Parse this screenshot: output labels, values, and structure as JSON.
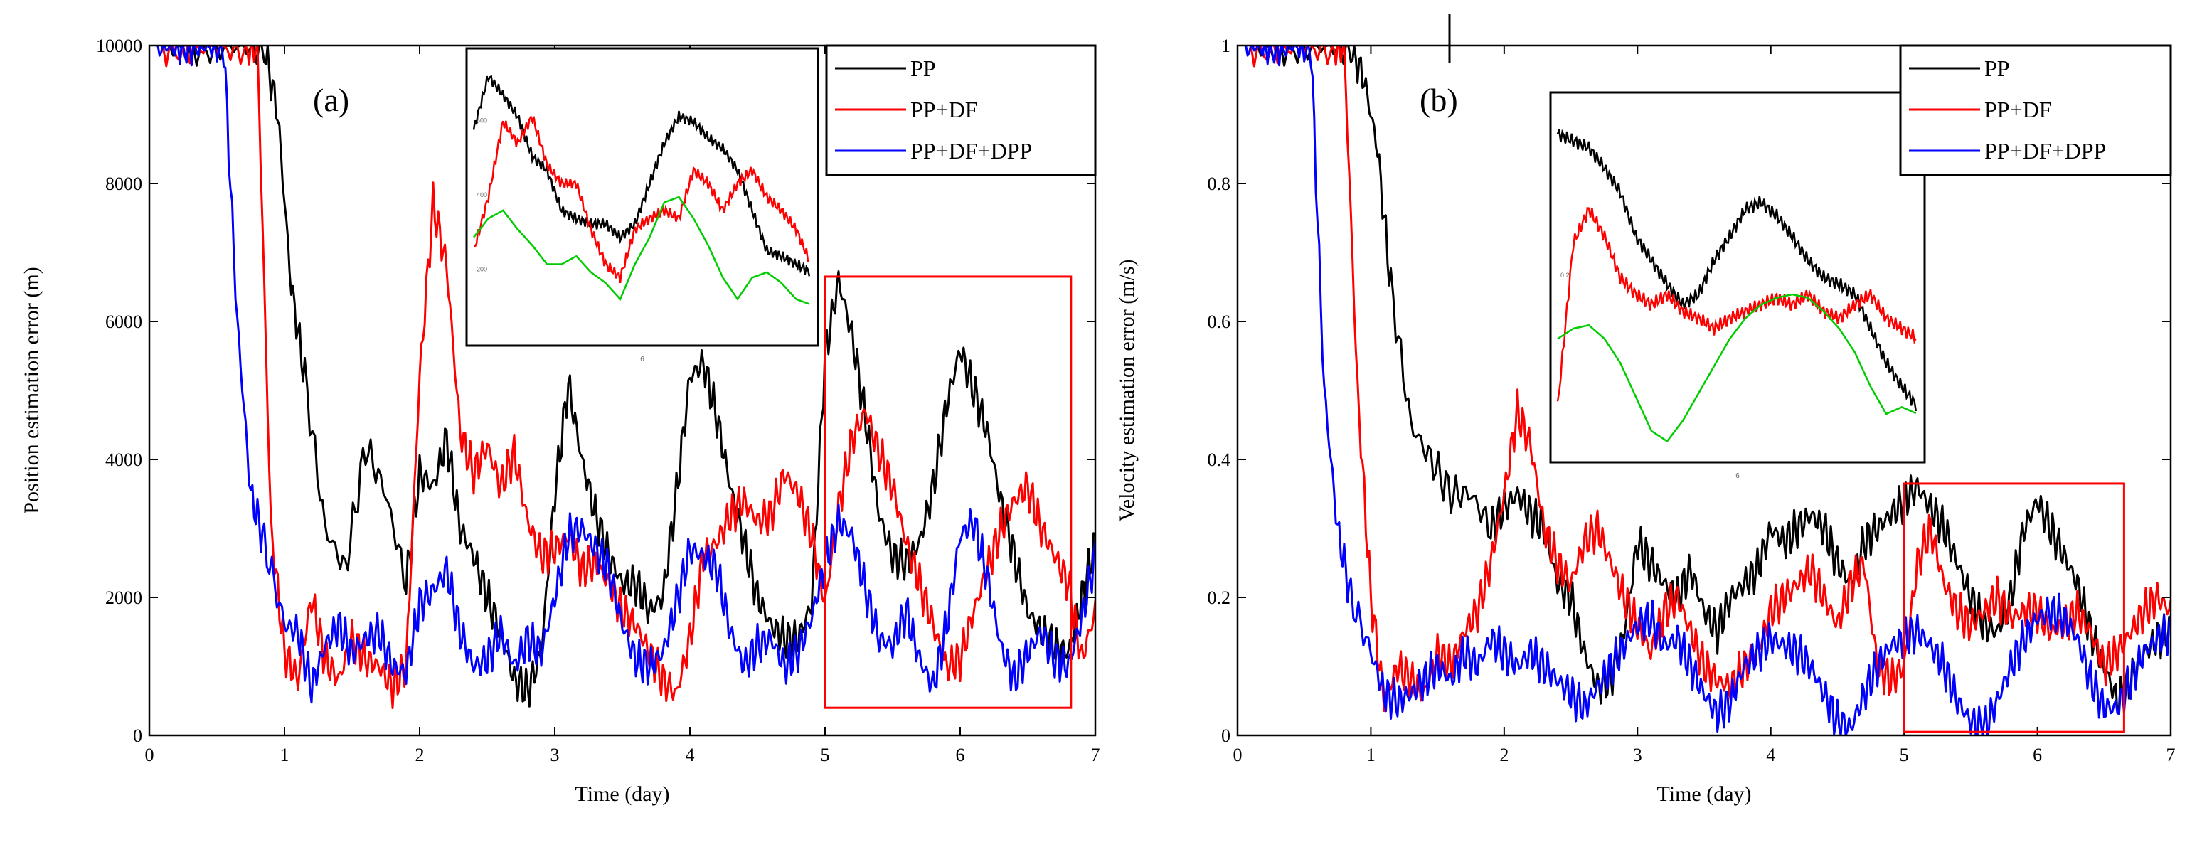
{
  "chart_data": [
    {
      "type": "line",
      "panel_label": "(a)",
      "xlabel": "Time (day)",
      "ylabel": "Position estimation error (m)",
      "xlim": [
        0,
        7
      ],
      "ylim": [
        0,
        10000
      ],
      "x_ticks": [
        0,
        1,
        2,
        3,
        4,
        5,
        6,
        7
      ],
      "y_ticks": [
        0,
        2000,
        4000,
        6000,
        8000,
        10000
      ],
      "legend_position": "top-right",
      "series": [
        {
          "name": "PP",
          "color": "#000000",
          "x": [
            0.1,
            0.3,
            0.5,
            0.7,
            0.85,
            0.95,
            1.05,
            1.15,
            1.3,
            1.45,
            1.6,
            1.75,
            1.9,
            2.0,
            2.1,
            2.2,
            2.3,
            2.4,
            2.5,
            2.6,
            2.7,
            2.8,
            2.9,
            3.0,
            3.1,
            3.2,
            3.3,
            3.4,
            3.5,
            3.6,
            3.7,
            3.8,
            3.9,
            4.0,
            4.1,
            4.2,
            4.3,
            4.4,
            4.5,
            4.6,
            4.7,
            4.8,
            4.9,
            5.0,
            5.1,
            5.2,
            5.3,
            5.4,
            5.5,
            5.6,
            5.7,
            5.8,
            5.9,
            6.0,
            6.1,
            6.2,
            6.3,
            6.4,
            6.5,
            6.6,
            6.7,
            6.8,
            6.9,
            7.0
          ],
          "y": [
            10000,
            10000,
            10000,
            10000,
            10000,
            9000,
            6500,
            5200,
            3000,
            2400,
            4200,
            3500,
            2200,
            3800,
            3600,
            4300,
            3000,
            2600,
            2000,
            1500,
            800,
            650,
            1200,
            3500,
            5100,
            4000,
            3200,
            2600,
            2200,
            2200,
            1800,
            2000,
            3500,
            5200,
            5400,
            4600,
            3600,
            2800,
            2000,
            1600,
            1400,
            1400,
            1900,
            5500,
            6600,
            5800,
            4600,
            3200,
            2600,
            2500,
            2800,
            3600,
            4800,
            5600,
            5000,
            4400,
            3400,
            2600,
            1800,
            1500,
            1300,
            1200,
            2000,
            2800
          ]
        },
        {
          "name": "PP+DF",
          "color": "#ff0000",
          "x": [
            0.1,
            0.3,
            0.5,
            0.7,
            0.8,
            0.9,
            1.0,
            1.1,
            1.2,
            1.3,
            1.4,
            1.5,
            1.6,
            1.7,
            1.8,
            1.9,
            2.0,
            2.1,
            2.2,
            2.3,
            2.4,
            2.5,
            2.6,
            2.7,
            2.8,
            2.9,
            3.0,
            3.1,
            3.2,
            3.3,
            3.4,
            3.5,
            3.6,
            3.7,
            3.8,
            3.9,
            4.0,
            4.1,
            4.2,
            4.3,
            4.4,
            4.5,
            4.6,
            4.7,
            4.8,
            4.9,
            5.0,
            5.1,
            5.2,
            5.3,
            5.4,
            5.5,
            5.6,
            5.7,
            5.8,
            5.9,
            6.0,
            6.1,
            6.2,
            6.3,
            6.4,
            6.5,
            6.6,
            6.7,
            6.8,
            6.9,
            7.0
          ],
          "y": [
            10000,
            10000,
            10000,
            10000,
            10000,
            3000,
            1200,
            800,
            2000,
            1100,
            800,
            1400,
            1100,
            1000,
            700,
            1000,
            5200,
            7700,
            6800,
            4400,
            3800,
            4200,
            3600,
            4100,
            3100,
            2600,
            2700,
            2900,
            2400,
            2500,
            2200,
            1800,
            1600,
            1200,
            800,
            600,
            1400,
            2600,
            2800,
            3200,
            3400,
            3100,
            3200,
            3800,
            3500,
            2900,
            1900,
            3300,
            4300,
            4700,
            4100,
            3600,
            2800,
            2200,
            1600,
            1000,
            1100,
            1800,
            2400,
            3000,
            3400,
            3600,
            3000,
            2600,
            2200,
            1100,
            1800
          ]
        },
        {
          "name": "PP+DF+DPP",
          "color": "#0000ff",
          "x": [
            0.05,
            0.15,
            0.25,
            0.35,
            0.45,
            0.55,
            0.65,
            0.75,
            0.85,
            1.0,
            1.1,
            1.2,
            1.3,
            1.4,
            1.5,
            1.6,
            1.7,
            1.8,
            1.9,
            2.0,
            2.1,
            2.2,
            2.3,
            2.4,
            2.5,
            2.6,
            2.7,
            2.8,
            2.9,
            3.0,
            3.1,
            3.2,
            3.3,
            3.4,
            3.5,
            3.6,
            3.7,
            3.8,
            3.9,
            4.0,
            4.1,
            4.2,
            4.3,
            4.4,
            4.5,
            4.6,
            4.7,
            4.8,
            4.9,
            5.0,
            5.1,
            5.2,
            5.3,
            5.4,
            5.5,
            5.6,
            5.7,
            5.8,
            5.9,
            6.0,
            6.1,
            6.2,
            6.3,
            6.4,
            6.5,
            6.6,
            6.7,
            6.8,
            6.9,
            7.0
          ],
          "y": [
            10000,
            10000,
            10000,
            10000,
            10000,
            10000,
            6000,
            3500,
            2800,
            1600,
            1500,
            700,
            1300,
            1600,
            1200,
            1400,
            1500,
            1000,
            900,
            1900,
            2100,
            2400,
            1500,
            1000,
            1100,
            1500,
            1000,
            1400,
            1200,
            2000,
            2900,
            3000,
            2700,
            2400,
            1600,
            1100,
            1000,
            1200,
            1900,
            2700,
            2600,
            2400,
            1500,
            1000,
            1300,
            1400,
            1000,
            1200,
            1700,
            2500,
            3100,
            2900,
            2100,
            1400,
            1300,
            1800,
            1100,
            700,
            1600,
            2900,
            3100,
            2300,
            1300,
            800,
            1200,
            1500,
            1100,
            1000,
            1700,
            2600
          ]
        }
      ],
      "inset": {
        "x_tick_label": "6",
        "y_tick_labels": [
          "600",
          "400",
          "200"
        ],
        "series": [
          {
            "name": "PP",
            "color": "#000000",
            "values": [
              0.75,
              0.95,
              0.88,
              0.8,
              0.65,
              0.6,
              0.45,
              0.42,
              0.4,
              0.4,
              0.35,
              0.4,
              0.55,
              0.7,
              0.8,
              0.78,
              0.72,
              0.68,
              0.6,
              0.45,
              0.3,
              0.28,
              0.25,
              0.22
            ]
          },
          {
            "name": "PP+DF",
            "color": "#ff0000",
            "values": [
              0.3,
              0.5,
              0.78,
              0.7,
              0.8,
              0.62,
              0.55,
              0.55,
              0.38,
              0.25,
              0.2,
              0.38,
              0.42,
              0.45,
              0.42,
              0.6,
              0.55,
              0.45,
              0.55,
              0.6,
              0.5,
              0.45,
              0.38,
              0.25
            ]
          },
          {
            "name": "PP+DF+DPP",
            "color": "#00cc00",
            "values": [
              0.35,
              0.42,
              0.45,
              0.38,
              0.32,
              0.25,
              0.25,
              0.28,
              0.22,
              0.18,
              0.12,
              0.25,
              0.35,
              0.48,
              0.5,
              0.42,
              0.32,
              0.2,
              0.12,
              0.2,
              0.22,
              0.18,
              0.12,
              0.1
            ]
          }
        ]
      }
    },
    {
      "type": "line",
      "panel_label": "(b)",
      "xlabel": "Time (day)",
      "ylabel": "Velocity estimation error (m/s)",
      "xlim": [
        0,
        7
      ],
      "ylim": [
        0,
        1.0
      ],
      "x_ticks": [
        0,
        1,
        2,
        3,
        4,
        5,
        6,
        7
      ],
      "y_ticks": [
        0.0,
        0.2,
        0.4,
        0.6,
        0.8,
        1.0
      ],
      "legend_position": "top-right",
      "series": [
        {
          "name": "PP",
          "color": "#000000",
          "x": [
            0.1,
            0.3,
            0.5,
            0.7,
            0.85,
            0.95,
            1.05,
            1.15,
            1.3,
            1.45,
            1.6,
            1.75,
            1.9,
            2.0,
            2.1,
            2.2,
            2.3,
            2.4,
            2.5,
            2.6,
            2.7,
            2.8,
            2.9,
            3.0,
            3.1,
            3.2,
            3.3,
            3.4,
            3.5,
            3.6,
            3.7,
            3.8,
            3.9,
            4.0,
            4.1,
            4.2,
            4.3,
            4.4,
            4.5,
            4.6,
            4.7,
            4.8,
            4.9,
            5.0,
            5.1,
            5.2,
            5.3,
            5.4,
            5.5,
            5.6,
            5.7,
            5.8,
            5.9,
            6.0,
            6.1,
            6.2,
            6.3,
            6.4,
            6.5,
            6.6,
            6.7,
            6.8,
            6.9,
            7.0
          ],
          "y": [
            1.0,
            1.0,
            1.0,
            1.0,
            1.0,
            0.95,
            0.85,
            0.65,
            0.45,
            0.4,
            0.35,
            0.35,
            0.3,
            0.33,
            0.35,
            0.32,
            0.3,
            0.22,
            0.2,
            0.12,
            0.07,
            0.08,
            0.15,
            0.28,
            0.25,
            0.22,
            0.2,
            0.24,
            0.18,
            0.15,
            0.2,
            0.22,
            0.24,
            0.3,
            0.28,
            0.3,
            0.32,
            0.3,
            0.25,
            0.22,
            0.28,
            0.3,
            0.32,
            0.34,
            0.36,
            0.33,
            0.3,
            0.25,
            0.2,
            0.16,
            0.15,
            0.2,
            0.3,
            0.34,
            0.3,
            0.26,
            0.22,
            0.15,
            0.1,
            0.05,
            0.08,
            0.12,
            0.14,
            0.15
          ]
        },
        {
          "name": "PP+DF",
          "color": "#ff0000",
          "x": [
            0.1,
            0.3,
            0.5,
            0.7,
            0.8,
            0.9,
            1.0,
            1.1,
            1.2,
            1.3,
            1.4,
            1.5,
            1.6,
            1.7,
            1.8,
            1.9,
            2.0,
            2.1,
            2.2,
            2.3,
            2.4,
            2.5,
            2.6,
            2.7,
            2.8,
            2.9,
            3.0,
            3.1,
            3.2,
            3.3,
            3.4,
            3.5,
            3.6,
            3.7,
            3.8,
            3.9,
            4.0,
            4.1,
            4.2,
            4.3,
            4.4,
            4.5,
            4.6,
            4.7,
            4.8,
            4.9,
            5.0,
            5.1,
            5.2,
            5.3,
            5.4,
            5.5,
            5.6,
            5.7,
            5.8,
            5.9,
            6.0,
            6.1,
            6.2,
            6.3,
            6.4,
            6.5,
            6.6,
            6.7,
            6.8,
            6.9,
            7.0
          ],
          "y": [
            1.0,
            1.0,
            1.0,
            1.0,
            1.0,
            0.5,
            0.2,
            0.05,
            0.1,
            0.08,
            0.06,
            0.12,
            0.1,
            0.15,
            0.18,
            0.25,
            0.35,
            0.47,
            0.42,
            0.3,
            0.25,
            0.22,
            0.28,
            0.3,
            0.25,
            0.2,
            0.16,
            0.12,
            0.18,
            0.2,
            0.15,
            0.1,
            0.08,
            0.07,
            0.1,
            0.12,
            0.18,
            0.2,
            0.22,
            0.24,
            0.2,
            0.16,
            0.22,
            0.25,
            0.1,
            0.08,
            0.1,
            0.25,
            0.3,
            0.22,
            0.18,
            0.16,
            0.18,
            0.2,
            0.17,
            0.18,
            0.18,
            0.15,
            0.16,
            0.18,
            0.15,
            0.1,
            0.12,
            0.15,
            0.18,
            0.2,
            0.18
          ]
        },
        {
          "name": "PP+DF+DPP",
          "color": "#0000ff",
          "x": [
            0.05,
            0.15,
            0.25,
            0.35,
            0.45,
            0.55,
            0.65,
            0.75,
            0.85,
            1.0,
            1.1,
            1.2,
            1.3,
            1.4,
            1.5,
            1.6,
            1.7,
            1.8,
            1.9,
            2.0,
            2.1,
            2.2,
            2.3,
            2.4,
            2.5,
            2.6,
            2.7,
            2.8,
            2.9,
            3.0,
            3.1,
            3.2,
            3.3,
            3.4,
            3.5,
            3.6,
            3.7,
            3.8,
            3.9,
            4.0,
            4.1,
            4.2,
            4.3,
            4.4,
            4.5,
            4.6,
            4.7,
            4.8,
            4.9,
            5.0,
            5.1,
            5.2,
            5.3,
            5.4,
            5.5,
            5.6,
            5.7,
            5.8,
            5.9,
            6.0,
            6.1,
            6.2,
            6.3,
            6.4,
            6.5,
            6.6,
            6.7,
            6.8,
            6.9,
            7.0
          ],
          "y": [
            1.0,
            1.0,
            1.0,
            1.0,
            1.0,
            1.0,
            0.5,
            0.3,
            0.2,
            0.12,
            0.06,
            0.05,
            0.06,
            0.08,
            0.1,
            0.08,
            0.12,
            0.1,
            0.14,
            0.12,
            0.1,
            0.12,
            0.1,
            0.08,
            0.06,
            0.04,
            0.07,
            0.1,
            0.13,
            0.16,
            0.17,
            0.13,
            0.14,
            0.1,
            0.06,
            0.03,
            0.05,
            0.1,
            0.12,
            0.14,
            0.13,
            0.12,
            0.1,
            0.06,
            0.02,
            0.01,
            0.06,
            0.1,
            0.13,
            0.14,
            0.15,
            0.13,
            0.1,
            0.05,
            0.02,
            0.01,
            0.05,
            0.1,
            0.14,
            0.17,
            0.18,
            0.17,
            0.14,
            0.08,
            0.04,
            0.04,
            0.08,
            0.12,
            0.14,
            0.15
          ]
        }
      ],
      "inset": {
        "x_tick_label": "6",
        "y_tick_labels": [
          "0.2"
        ],
        "series": [
          {
            "name": "PP",
            "color": "#000000",
            "values": [
              0.92,
              0.9,
              0.88,
              0.82,
              0.75,
              0.62,
              0.55,
              0.48,
              0.42,
              0.45,
              0.55,
              0.62,
              0.7,
              0.72,
              0.68,
              0.62,
              0.55,
              0.5,
              0.48,
              0.45,
              0.35,
              0.25,
              0.18,
              0.12
            ]
          },
          {
            "name": "PP+DF",
            "color": "#ff0000",
            "values": [
              0.12,
              0.6,
              0.7,
              0.62,
              0.5,
              0.45,
              0.42,
              0.45,
              0.4,
              0.38,
              0.35,
              0.38,
              0.4,
              0.42,
              0.44,
              0.42,
              0.45,
              0.4,
              0.38,
              0.42,
              0.45,
              0.38,
              0.35,
              0.32
            ]
          },
          {
            "name": "PP+DF+DPP",
            "color": "#00cc00",
            "values": [
              0.32,
              0.35,
              0.36,
              0.32,
              0.25,
              0.15,
              0.05,
              0.02,
              0.08,
              0.16,
              0.24,
              0.32,
              0.38,
              0.42,
              0.44,
              0.45,
              0.44,
              0.4,
              0.35,
              0.28,
              0.18,
              0.1,
              0.12,
              0.1
            ]
          }
        ]
      }
    }
  ]
}
